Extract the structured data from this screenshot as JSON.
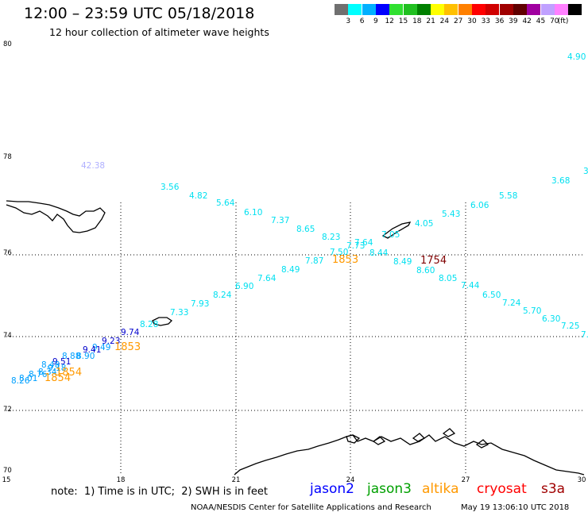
{
  "header": {
    "title": "12:00 – 23:59 UTC 05/18/2018",
    "subtitle": "12 hour collection of altimeter wave heights"
  },
  "scale": {
    "colors": [
      "#707070",
      "#00ffff",
      "#00b0ff",
      "#0000ff",
      "#30e030",
      "#20c020",
      "#008000",
      "#ffff00",
      "#ffc000",
      "#ff8000",
      "#ff0000",
      "#d00000",
      "#a00000",
      "#600000",
      "#a000a0",
      "#c0a0ff",
      "#ff80ff",
      "#000000"
    ],
    "labels": [
      "3",
      "6",
      "9",
      "12",
      "15",
      "18",
      "21",
      "24",
      "27",
      "30",
      "33",
      "36",
      "39",
      "42",
      "45",
      "70"
    ],
    "unit": "(ft)"
  },
  "axes": {
    "lat_labels": [
      "80",
      "78",
      "76",
      "74",
      "72",
      "70"
    ],
    "lon_labels": [
      "15",
      "18",
      "21",
      "24",
      "27",
      "30"
    ]
  },
  "measurements": [
    {
      "v": "4.90",
      "c": "#00e0f0"
    },
    {
      "v": "42.38",
      "c": "#b0b0ff"
    },
    {
      "v": "3",
      "c": "#00e0f0"
    },
    {
      "v": "3.68",
      "c": "#00e0f0"
    },
    {
      "v": "5.58",
      "c": "#00e0f0"
    },
    {
      "v": "6.06",
      "c": "#00e0f0"
    },
    {
      "v": "5.43",
      "c": "#00e0f0"
    },
    {
      "v": "4.05",
      "c": "#00e0f0"
    },
    {
      "v": "7.05",
      "c": "#00e0f0"
    },
    {
      "v": "3.56",
      "c": "#00e0f0"
    },
    {
      "v": "4.82",
      "c": "#00e0f0"
    },
    {
      "v": "5.64",
      "c": "#00e0f0"
    },
    {
      "v": "6.10",
      "c": "#00e0f0"
    },
    {
      "v": "7.37",
      "c": "#00e0f0"
    },
    {
      "v": "8.65",
      "c": "#00e0f0"
    },
    {
      "v": "8.23",
      "c": "#00e0f0"
    },
    {
      "v": "7.64",
      "c": "#00e0f0"
    },
    {
      "v": "7.73",
      "c": "#00e0f0"
    },
    {
      "v": "7.50",
      "c": "#00e0f0"
    },
    {
      "v": "8.44",
      "c": "#00e0f0"
    },
    {
      "v": "8.49",
      "c": "#00e0f0"
    },
    {
      "v": "8.60",
      "c": "#00e0f0"
    },
    {
      "v": "8.05",
      "c": "#00e0f0"
    },
    {
      "v": "7.44",
      "c": "#00e0f0"
    },
    {
      "v": "6.50",
      "c": "#00e0f0"
    },
    {
      "v": "7.24",
      "c": "#00e0f0"
    },
    {
      "v": "5.70",
      "c": "#00e0f0"
    },
    {
      "v": "6.30",
      "c": "#00e0f0"
    },
    {
      "v": "7.25",
      "c": "#00e0f0"
    },
    {
      "v": "7.",
      "c": "#00e0f0"
    },
    {
      "v": "7.87",
      "c": "#00e0f0"
    },
    {
      "v": "8.49",
      "c": "#00e0f0"
    },
    {
      "v": "7.64",
      "c": "#00e0f0"
    },
    {
      "v": "6.90",
      "c": "#00e0f0"
    },
    {
      "v": "8.24",
      "c": "#00e0f0"
    },
    {
      "v": "7.93",
      "c": "#00e0f0"
    },
    {
      "v": "7.33",
      "c": "#00e0f0"
    },
    {
      "v": "8.28",
      "c": "#00e0f0"
    },
    {
      "v": "9.74",
      "c": "#0000cc"
    },
    {
      "v": "9.23",
      "c": "#0000cc"
    },
    {
      "v": "9.49",
      "c": "#00a0ff"
    },
    {
      "v": "9.41",
      "c": "#0000cc"
    },
    {
      "v": "8.90",
      "c": "#00a0ff"
    },
    {
      "v": "8.88",
      "c": "#00a0ff"
    },
    {
      "v": "9.51",
      "c": "#0000cc"
    },
    {
      "v": "8.48",
      "c": "#00a0ff"
    },
    {
      "v": "9.18",
      "c": "#00a0ff"
    },
    {
      "v": "8.34",
      "c": "#00a0ff"
    },
    {
      "v": "8.76",
      "c": "#00a0ff"
    },
    {
      "v": "8.01",
      "c": "#00a0ff"
    },
    {
      "v": "8.26",
      "c": "#00a0ff"
    }
  ],
  "pass_times": [
    {
      "t": "1853",
      "c": "#ff9900"
    },
    {
      "t": "1754",
      "c": "#800000"
    },
    {
      "t": "1853",
      "c": "#ff9900"
    },
    {
      "t": "1854",
      "c": "#ff9900"
    },
    {
      "t": "1854",
      "c": "#ff9900"
    }
  ],
  "note": "note:  1) Time is in UTC;  2) SWH is in feet",
  "satellites": [
    {
      "name": "jason2",
      "color": "#0000ff"
    },
    {
      "name": "jason3",
      "color": "#00a000"
    },
    {
      "name": "altika",
      "color": "#ff9900"
    },
    {
      "name": "cryosat",
      "color": "#ff0000"
    },
    {
      "name": "s3a",
      "color": "#a00000"
    }
  ],
  "footer": {
    "credit": "NOAA/NESDIS Center for Satellite Applications and Research",
    "timestamp": "May 19 13:06:10 UTC 2018"
  }
}
